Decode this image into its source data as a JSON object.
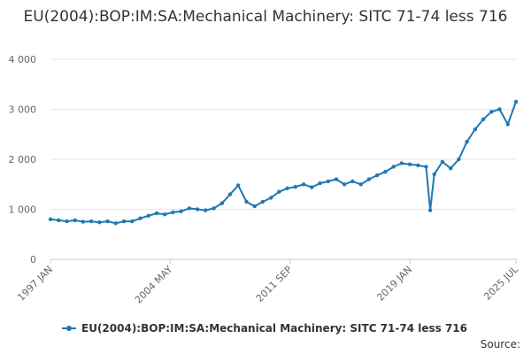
{
  "chart_data": {
    "type": "line",
    "title": "EU(2004):BOP:IM:SA:Mechanical Machinery: SITC 71-74 less 716",
    "xlabel": "",
    "ylabel": "",
    "ylim": [
      0,
      4000
    ],
    "xlim": [
      "1997-01",
      "2025-07"
    ],
    "grid": "horizontal",
    "legend_position": "bottom",
    "y_ticks": [
      "0",
      "1 000",
      "2 000",
      "3 000",
      "4 000"
    ],
    "x_ticks": [
      "1997 JAN",
      "2004 MAY",
      "2011 SEP",
      "2019 JAN",
      "2025 JUL"
    ],
    "series": [
      {
        "name": "EU(2004):BOP:IM:SA:Mechanical Machinery: SITC 71-74 less 716",
        "color": "#1f78b4",
        "x": [
          "1997-01",
          "1997-07",
          "1998-01",
          "1998-07",
          "1999-01",
          "1999-07",
          "2000-01",
          "2000-07",
          "2001-01",
          "2001-07",
          "2002-01",
          "2002-07",
          "2003-01",
          "2003-07",
          "2004-01",
          "2004-07",
          "2005-01",
          "2005-07",
          "2006-01",
          "2006-07",
          "2007-01",
          "2007-07",
          "2008-01",
          "2008-07",
          "2009-01",
          "2009-07",
          "2010-01",
          "2010-07",
          "2011-01",
          "2011-07",
          "2012-01",
          "2012-07",
          "2013-01",
          "2013-07",
          "2014-01",
          "2014-07",
          "2015-01",
          "2015-07",
          "2016-01",
          "2016-07",
          "2017-01",
          "2017-07",
          "2018-01",
          "2018-07",
          "2019-01",
          "2019-07",
          "2020-01",
          "2020-04",
          "2020-07",
          "2021-01",
          "2021-07",
          "2022-01",
          "2022-07",
          "2023-01",
          "2023-07",
          "2024-01",
          "2024-07",
          "2025-01",
          "2025-07"
        ],
        "values": [
          800,
          780,
          760,
          780,
          750,
          760,
          740,
          760,
          720,
          760,
          760,
          820,
          870,
          920,
          900,
          940,
          960,
          1020,
          1000,
          980,
          1020,
          1120,
          1300,
          1480,
          1150,
          1060,
          1150,
          1230,
          1350,
          1420,
          1450,
          1500,
          1440,
          1520,
          1560,
          1600,
          1500,
          1560,
          1500,
          1600,
          1680,
          1750,
          1850,
          1920,
          1900,
          1880,
          1850,
          980,
          1700,
          1950,
          1820,
          2000,
          2350,
          2600,
          2800,
          2950,
          3000,
          2700,
          3150
        ]
      }
    ]
  },
  "legend": {
    "label": "EU(2004):BOP:IM:SA:Mechanical Machinery: SITC 71-74 less 716"
  },
  "footer": {
    "source_label": "Source:"
  }
}
